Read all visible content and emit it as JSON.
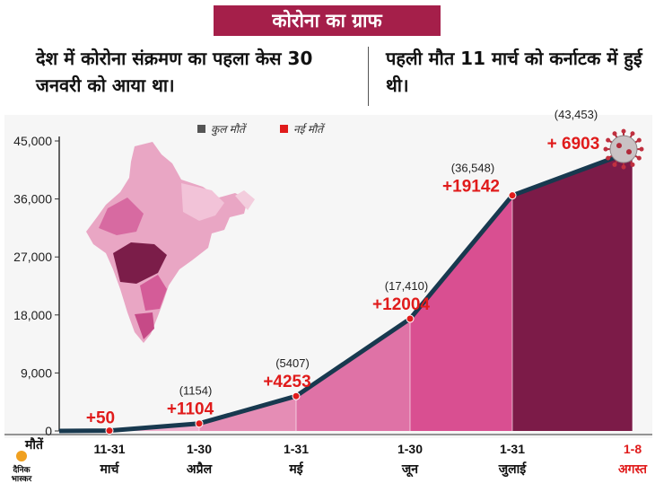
{
  "header": {
    "title": "कोरोना का ग्राफ",
    "fact_left": "देश में कोरोना संक्रमण का पहला केस 30 जनवरी को आया था।",
    "fact_right": "पहली मौत 11 मार्च को कर्नाटक में हुई थी।"
  },
  "logo": {
    "line1": "दैनिक",
    "line2": "भास्कर"
  },
  "colors": {
    "title_bg": "#a51f4a",
    "line": "#18394f",
    "fill_light": "#efaccb",
    "fill_dark": "#d94f91",
    "fill_highlight": "#7c1b48",
    "increase_text": "#e01b1b",
    "highlight_label": "#e01b1b"
  },
  "chart_data": {
    "type": "area",
    "x_axis_title": "मौतें",
    "categories": [
      "11-31 मार्च",
      "1-30 अप्रैल",
      "1-31 मई",
      "1-30 जून",
      "1-31 जुलाई",
      "1-8 अगस्त"
    ],
    "category_lines": [
      [
        "11-31",
        "मार्च"
      ],
      [
        "1-30",
        "अप्रैल"
      ],
      [
        "1-31",
        "मई"
      ],
      [
        "1-30",
        "जून"
      ],
      [
        "1-31",
        "जुलाई"
      ],
      [
        "1-8",
        "अगस्त"
      ]
    ],
    "series": [
      {
        "name": "कुल मौतें",
        "values": [
          50,
          1154,
          5407,
          17410,
          36548,
          43453
        ],
        "labels": [
          "",
          "(1154)",
          "(5407)",
          "(17,410)",
          "(36,548)",
          "(43,453)"
        ]
      },
      {
        "name": "नई मौतें",
        "values": [
          50,
          1104,
          4253,
          12004,
          19142,
          6903
        ],
        "labels": [
          "+50",
          "+1104",
          "+4253",
          "+12004",
          "+19142",
          "+ 6903"
        ]
      }
    ],
    "legend": [
      {
        "name": "कुल मौतें",
        "color": "#555555"
      },
      {
        "name": "नई मौतें",
        "color": "#e01b1b"
      }
    ],
    "legend_position": "top-center",
    "highlight_category": "1-8 अगस्त",
    "y_ticks": [
      "0",
      "9,000",
      "18,000",
      "27,000",
      "36,000",
      "45,000"
    ],
    "y_tick_values": [
      0,
      9000,
      18000,
      27000,
      36000,
      45000
    ],
    "ylim": [
      0,
      45000
    ],
    "grid": false
  }
}
